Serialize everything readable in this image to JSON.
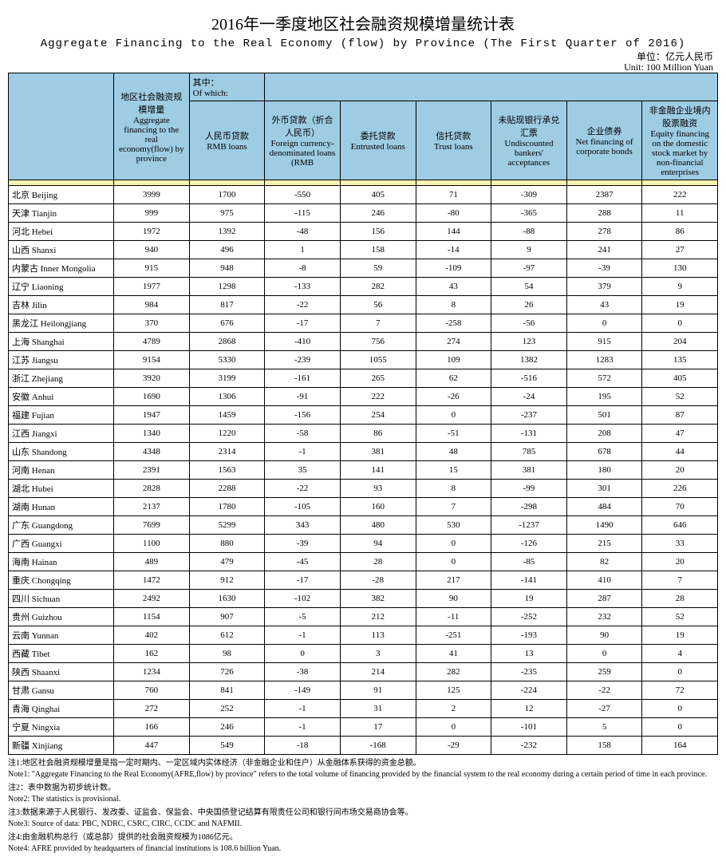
{
  "title_zh": "2016年一季度地区社会融资规模增量统计表",
  "title_en": "Aggregate Financing to the Real Economy (flow) by Province (The First Quarter of 2016)",
  "unit_zh": "单位：亿元人民币",
  "unit_en": "Unit: 100 Million Yuan",
  "header": {
    "c1": "地区社会融资规模增量\nAggregate financing to the real economy(flow) by province",
    "c2": "其中：\nOf which:",
    "h_rmb": "人民币贷款\nRMB loans",
    "h_fx": "外币贷款（折合人民币）\nForeign currency-denominated loans (RMB",
    "h_entrusted": "委托贷款\nEntrusted loans",
    "h_trust": "信托贷款\nTrust loans",
    "h_undisc": "未贴现银行承兑汇票\nUndiscounted bankers' acceptances",
    "h_bond": "企业债券\nNet financing of corporate bonds",
    "h_equity": "非金融企业境内股票融资\nEquity financing on the domestic stock market by non-financial enterprises"
  },
  "rows": [
    {
      "n": "北京 Beijing",
      "v": [
        "3999",
        "1700",
        "-550",
        "405",
        "71",
        "-309",
        "2387",
        "222"
      ]
    },
    {
      "n": "天津 Tianjin",
      "v": [
        "999",
        "975",
        "-115",
        "246",
        "-80",
        "-365",
        "288",
        "11"
      ]
    },
    {
      "n": "河北 Hebei",
      "v": [
        "1972",
        "1392",
        "-48",
        "156",
        "144",
        "-88",
        "278",
        "86"
      ]
    },
    {
      "n": "山西 Shanxi",
      "v": [
        "940",
        "496",
        "1",
        "158",
        "-14",
        "9",
        "241",
        "27"
      ]
    },
    {
      "n": "内蒙古 Inner Mongolia",
      "v": [
        "915",
        "948",
        "-8",
        "59",
        "-109",
        "-97",
        "-39",
        "130"
      ]
    },
    {
      "n": "辽宁 Liaoning",
      "v": [
        "1977",
        "1298",
        "-133",
        "282",
        "43",
        "54",
        "379",
        "9"
      ]
    },
    {
      "n": "吉林 Jilin",
      "v": [
        "984",
        "817",
        "-22",
        "56",
        "8",
        "26",
        "43",
        "19"
      ]
    },
    {
      "n": "黑龙江 Heilongjiang",
      "v": [
        "370",
        "676",
        "-17",
        "7",
        "-258",
        "-56",
        "0",
        "0"
      ]
    },
    {
      "n": "上海 Shanghai",
      "v": [
        "4789",
        "2868",
        "-410",
        "756",
        "274",
        "123",
        "915",
        "204"
      ]
    },
    {
      "n": "江苏 Jiangsu",
      "v": [
        "9154",
        "5330",
        "-239",
        "1055",
        "109",
        "1382",
        "1283",
        "135"
      ]
    },
    {
      "n": "浙江 Zhejiang",
      "v": [
        "3920",
        "3199",
        "-161",
        "265",
        "62",
        "-516",
        "572",
        "405"
      ]
    },
    {
      "n": "安徽 Anhui",
      "v": [
        "1690",
        "1306",
        "-91",
        "222",
        "-26",
        "-24",
        "195",
        "52"
      ]
    },
    {
      "n": "福建 Fujian",
      "v": [
        "1947",
        "1459",
        "-156",
        "254",
        "0",
        "-237",
        "501",
        "87"
      ]
    },
    {
      "n": "江西 Jiangxi",
      "v": [
        "1340",
        "1220",
        "-58",
        "86",
        "-51",
        "-131",
        "208",
        "47"
      ]
    },
    {
      "n": "山东 Shandong",
      "v": [
        "4348",
        "2314",
        "-1",
        "381",
        "48",
        "785",
        "678",
        "44"
      ]
    },
    {
      "n": "河南 Henan",
      "v": [
        "2391",
        "1563",
        "35",
        "141",
        "15",
        "381",
        "180",
        "20"
      ]
    },
    {
      "n": "湖北 Hubei",
      "v": [
        "2828",
        "2288",
        "-22",
        "93",
        "8",
        "-99",
        "301",
        "226"
      ]
    },
    {
      "n": "湖南 Hunan",
      "v": [
        "2137",
        "1780",
        "-105",
        "160",
        "7",
        "-298",
        "484",
        "70"
      ]
    },
    {
      "n": "广东 Guangdong",
      "v": [
        "7699",
        "5299",
        "343",
        "480",
        "530",
        "-1237",
        "1490",
        "646"
      ]
    },
    {
      "n": "广西 Guangxi",
      "v": [
        "1100",
        "880",
        "-39",
        "94",
        "0",
        "-126",
        "215",
        "33"
      ]
    },
    {
      "n": "海南 Hainan",
      "v": [
        "489",
        "479",
        "-45",
        "28",
        "0",
        "-85",
        "82",
        "20"
      ]
    },
    {
      "n": "重庆 Chongqing",
      "v": [
        "1472",
        "912",
        "-17",
        "-28",
        "217",
        "-141",
        "410",
        "7"
      ]
    },
    {
      "n": "四川 Sichuan",
      "v": [
        "2492",
        "1630",
        "-102",
        "382",
        "90",
        "19",
        "287",
        "28"
      ]
    },
    {
      "n": "贵州 Guizhou",
      "v": [
        "1154",
        "907",
        "-5",
        "212",
        "-11",
        "-252",
        "232",
        "52"
      ]
    },
    {
      "n": "云南 Yunnan",
      "v": [
        "402",
        "612",
        "-1",
        "113",
        "-251",
        "-193",
        "90",
        "19"
      ]
    },
    {
      "n": "西藏 Tibet",
      "v": [
        "162",
        "98",
        "0",
        "3",
        "41",
        "13",
        "0",
        "4"
      ]
    },
    {
      "n": "陕西 Shaanxi",
      "v": [
        "1234",
        "726",
        "-38",
        "214",
        "282",
        "-235",
        "259",
        "0"
      ]
    },
    {
      "n": "甘肃 Gansu",
      "v": [
        "760",
        "841",
        "-149",
        "91",
        "125",
        "-224",
        "-22",
        "72"
      ]
    },
    {
      "n": "青海 Qinghai",
      "v": [
        "272",
        "252",
        "-1",
        "31",
        "2",
        "12",
        "-27",
        "0"
      ]
    },
    {
      "n": "宁夏 Ningxia",
      "v": [
        "166",
        "246",
        "-1",
        "17",
        "0",
        "-101",
        "5",
        "0"
      ]
    },
    {
      "n": "新疆 Xinjiang",
      "v": [
        "447",
        "549",
        "-18",
        "-168",
        "-29",
        "-232",
        "158",
        "164"
      ]
    }
  ],
  "notes": [
    {
      "zh": "注1:地区社会融资规模增量是指一定时期内、一定区域内实体经济（非金融企业和住户）从金融体系获得的资金总额。",
      "en": "Note1: \"Aggregate Financing to the Real Economy(AFRE,flow) by province\" refers to the total volume of financing provided by the financial system to the real economy during a certain period of time in each province."
    },
    {
      "zh": "注2：表中数据为初步统计数。",
      "en": "Note2: The statistics is provisional."
    },
    {
      "zh": "注3:数据来源于人民银行、发改委、证监会、保监会、中央国债登记结算有限责任公司和银行间市场交易商协会等。",
      "en": "Note3: Source of data: PBC, NDRC, CSRC, CIRC, CCDC and NAFMII."
    },
    {
      "zh": "注4:由金融机构总行（或总部）提供的社会融资规模为1086亿元。",
      "en": "Note4: AFRE provided by headquarters of financial institutions is 108.6 billion Yuan."
    }
  ],
  "colors": {
    "header_blue": "#9ecce3",
    "header_yellow": "#f9f3b2",
    "background": "#ffffff",
    "border": "#000000"
  },
  "typography": {
    "title_zh_fontsize": 20,
    "title_en_fontsize": 14,
    "body_fontsize": 11,
    "notes_fontsize": 10
  }
}
